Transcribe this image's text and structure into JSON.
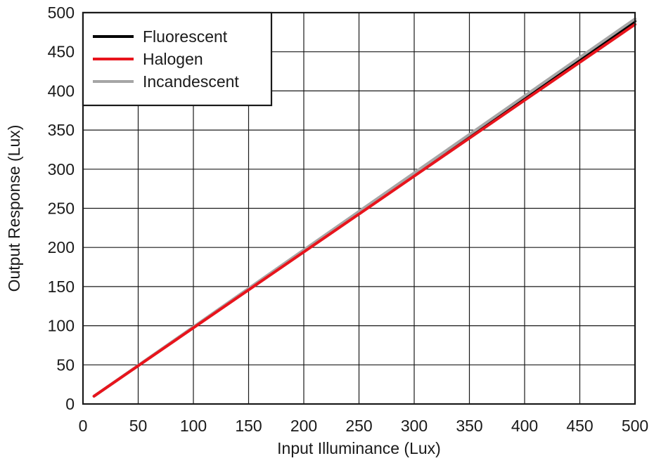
{
  "chart_data": {
    "type": "line",
    "title": "",
    "xlabel": "Input Illuminance (Lux)",
    "ylabel": "Output Response (Lux)",
    "xlim": [
      0,
      500
    ],
    "ylim": [
      0,
      500
    ],
    "x_ticks": [
      "0",
      "50",
      "100",
      "150",
      "200",
      "250",
      "300",
      "350",
      "400",
      "450",
      "500"
    ],
    "y_ticks": [
      "0",
      "50",
      "100",
      "150",
      "200",
      "250",
      "300",
      "350",
      "400",
      "450",
      "500"
    ],
    "grid": true,
    "legend_position": "top-left",
    "series": [
      {
        "name": "Fluorescent",
        "color": "#000000",
        "x": [
          10,
          500
        ],
        "y": [
          10,
          489
        ]
      },
      {
        "name": "Halogen",
        "color": "#e8141c",
        "x": [
          10,
          500
        ],
        "y": [
          10,
          485
        ]
      },
      {
        "name": "Incandescent",
        "color": "#a6a6a6",
        "x": [
          10,
          500
        ],
        "y": [
          10,
          492
        ]
      }
    ]
  }
}
